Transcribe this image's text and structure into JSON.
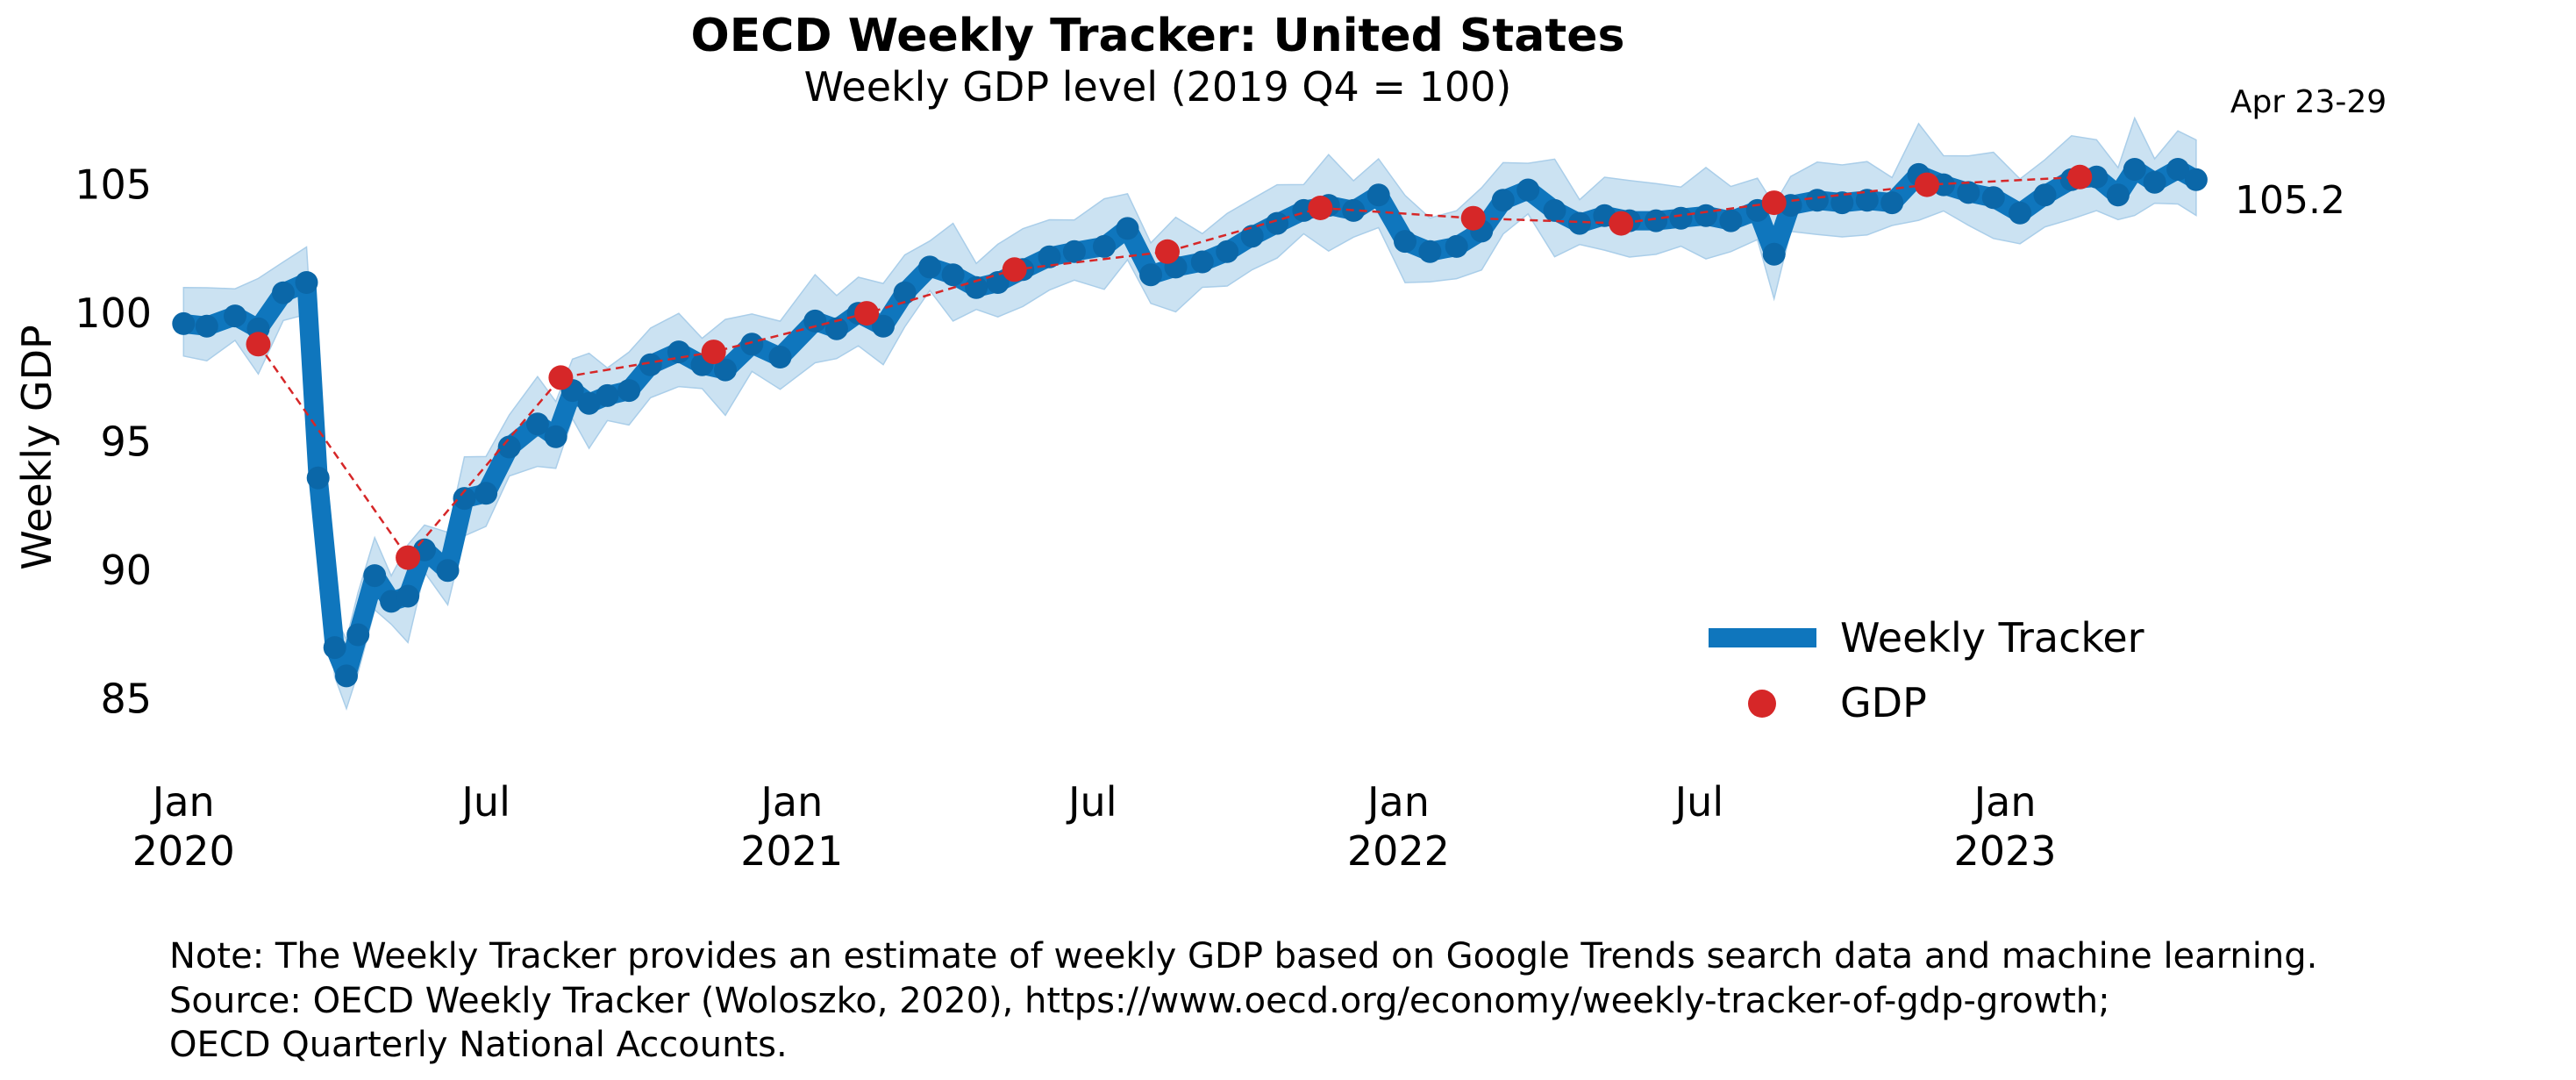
{
  "chart_data": {
    "type": "line",
    "title": "OECD Weekly Tracker: United States",
    "subtitle": "Weekly GDP level (2019 Q4 = 100)",
    "ylabel": "Weekly GDP",
    "xlabel": "",
    "ylim": [
      82.5,
      107
    ],
    "xlim": [
      "2019-12-25",
      "2023-05-05"
    ],
    "grid": false,
    "legend_position": "lower-right",
    "y_ticks": [
      85,
      90,
      95,
      100,
      105
    ],
    "x_ticks": [
      {
        "date": "2020-01-01",
        "label1": "Jan",
        "label2": "2020"
      },
      {
        "date": "2020-07-01",
        "label1": "Jul",
        "label2": ""
      },
      {
        "date": "2021-01-01",
        "label1": "Jan",
        "label2": "2021"
      },
      {
        "date": "2021-07-01",
        "label1": "Jul",
        "label2": ""
      },
      {
        "date": "2022-01-01",
        "label1": "Jan",
        "label2": "2022"
      },
      {
        "date": "2022-07-01",
        "label1": "Jul",
        "label2": ""
      },
      {
        "date": "2023-01-01",
        "label1": "Jan",
        "label2": "2023"
      }
    ],
    "latest_period_label": "Apr 23-29",
    "latest_value_label": "105.2",
    "series": [
      {
        "name": "Weekly Tracker",
        "color": "#0f76bd",
        "band_color": "#c3ddf0",
        "points": [
          [
            "2020-01-01",
            99.6
          ],
          [
            "2020-01-15",
            99.5
          ],
          [
            "2020-02-01",
            99.9
          ],
          [
            "2020-02-15",
            99.4
          ],
          [
            "2020-03-01",
            100.8
          ],
          [
            "2020-03-15",
            101.2
          ],
          [
            "2020-03-22",
            93.6
          ],
          [
            "2020-04-01",
            87.0
          ],
          [
            "2020-04-08",
            85.9
          ],
          [
            "2020-04-15",
            87.5
          ],
          [
            "2020-04-25",
            89.8
          ],
          [
            "2020-05-05",
            88.8
          ],
          [
            "2020-05-15",
            89.0
          ],
          [
            "2020-05-25",
            90.8
          ],
          [
            "2020-06-08",
            90.0
          ],
          [
            "2020-06-18",
            92.8
          ],
          [
            "2020-07-01",
            93.0
          ],
          [
            "2020-07-15",
            94.8
          ],
          [
            "2020-08-01",
            95.7
          ],
          [
            "2020-08-12",
            95.2
          ],
          [
            "2020-08-22",
            97.0
          ],
          [
            "2020-09-01",
            96.5
          ],
          [
            "2020-09-12",
            96.8
          ],
          [
            "2020-09-25",
            97.0
          ],
          [
            "2020-10-08",
            98.0
          ],
          [
            "2020-10-25",
            98.5
          ],
          [
            "2020-11-08",
            98.0
          ],
          [
            "2020-11-22",
            97.8
          ],
          [
            "2020-12-08",
            98.8
          ],
          [
            "2020-12-25",
            98.3
          ],
          [
            "2021-01-15",
            99.7
          ],
          [
            "2021-01-28",
            99.4
          ],
          [
            "2021-02-10",
            100.0
          ],
          [
            "2021-02-25",
            99.5
          ],
          [
            "2021-03-10",
            100.8
          ],
          [
            "2021-03-25",
            101.8
          ],
          [
            "2021-04-08",
            101.5
          ],
          [
            "2021-04-22",
            101.0
          ],
          [
            "2021-05-05",
            101.2
          ],
          [
            "2021-05-20",
            101.7
          ],
          [
            "2021-06-05",
            102.2
          ],
          [
            "2021-06-20",
            102.4
          ],
          [
            "2021-07-08",
            102.6
          ],
          [
            "2021-07-22",
            103.3
          ],
          [
            "2021-08-05",
            101.5
          ],
          [
            "2021-08-20",
            101.8
          ],
          [
            "2021-09-05",
            102.0
          ],
          [
            "2021-09-20",
            102.4
          ],
          [
            "2021-10-05",
            103.0
          ],
          [
            "2021-10-20",
            103.5
          ],
          [
            "2021-11-05",
            104.0
          ],
          [
            "2021-11-20",
            104.2
          ],
          [
            "2021-12-05",
            104.0
          ],
          [
            "2021-12-20",
            104.6
          ],
          [
            "2022-01-05",
            102.8
          ],
          [
            "2022-01-20",
            102.4
          ],
          [
            "2022-02-05",
            102.6
          ],
          [
            "2022-02-20",
            103.2
          ],
          [
            "2022-03-05",
            104.4
          ],
          [
            "2022-03-20",
            104.8
          ],
          [
            "2022-04-05",
            104.0
          ],
          [
            "2022-04-20",
            103.5
          ],
          [
            "2022-05-05",
            103.8
          ],
          [
            "2022-05-20",
            103.6
          ],
          [
            "2022-06-05",
            103.6
          ],
          [
            "2022-06-20",
            103.7
          ],
          [
            "2022-07-05",
            103.8
          ],
          [
            "2022-07-20",
            103.6
          ],
          [
            "2022-08-05",
            104.0
          ],
          [
            "2022-08-15",
            102.3
          ],
          [
            "2022-08-25",
            104.2
          ],
          [
            "2022-09-10",
            104.4
          ],
          [
            "2022-09-25",
            104.3
          ],
          [
            "2022-10-10",
            104.4
          ],
          [
            "2022-10-25",
            104.3
          ],
          [
            "2022-11-10",
            105.4
          ],
          [
            "2022-11-25",
            105.0
          ],
          [
            "2022-12-10",
            104.7
          ],
          [
            "2022-12-25",
            104.5
          ],
          [
            "2023-01-10",
            103.9
          ],
          [
            "2023-01-25",
            104.6
          ],
          [
            "2023-02-10",
            105.2
          ],
          [
            "2023-02-25",
            105.3
          ],
          [
            "2023-03-10",
            104.6
          ],
          [
            "2023-03-20",
            105.6
          ],
          [
            "2023-04-01",
            105.1
          ],
          [
            "2023-04-15",
            105.6
          ],
          [
            "2023-04-26",
            105.2
          ]
        ]
      },
      {
        "name": "GDP",
        "color": "#d62728",
        "points": [
          [
            "2020-02-15",
            98.8
          ],
          [
            "2020-05-15",
            90.5
          ],
          [
            "2020-08-15",
            97.5
          ],
          [
            "2020-11-15",
            98.5
          ],
          [
            "2021-02-15",
            100.0
          ],
          [
            "2021-05-15",
            101.7
          ],
          [
            "2021-08-15",
            102.4
          ],
          [
            "2021-11-15",
            104.1
          ],
          [
            "2022-02-15",
            103.7
          ],
          [
            "2022-05-15",
            103.5
          ],
          [
            "2022-08-15",
            104.3
          ],
          [
            "2022-11-15",
            105.0
          ],
          [
            "2023-02-15",
            105.3
          ]
        ]
      }
    ]
  },
  "note": {
    "line1": "Note: The Weekly Tracker provides an estimate of weekly GDP based on Google Trends search data and machine learning.",
    "line2": "Source: OECD Weekly Tracker (Woloszko, 2020), https://www.oecd.org/economy/weekly-tracker-of-gdp-growth;",
    "line3": "OECD Quarterly National Accounts."
  }
}
